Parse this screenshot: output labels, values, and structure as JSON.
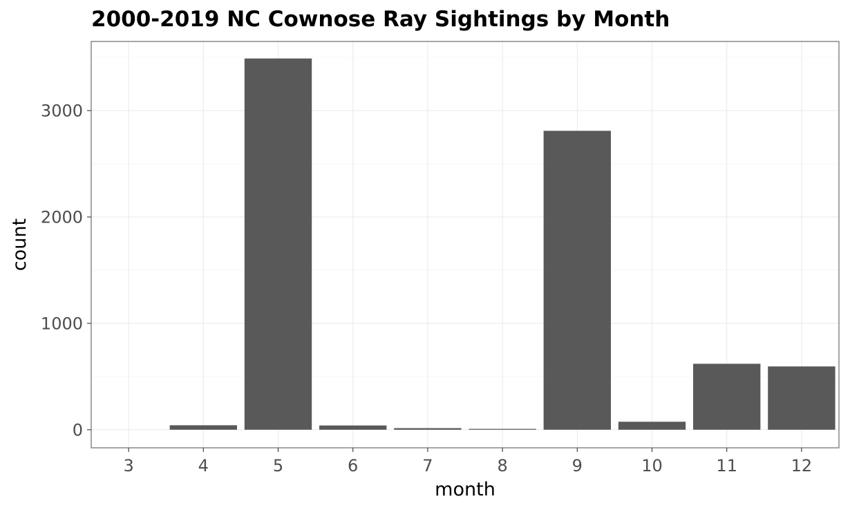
{
  "chart_data": {
    "type": "bar",
    "title": "2000-2019 NC Cownose Ray Sightings by Month",
    "xlabel": "month",
    "ylabel": "count",
    "categories": [
      "3",
      "4",
      "5",
      "6",
      "7",
      "8",
      "9",
      "10",
      "11",
      "12"
    ],
    "values": [
      0,
      42,
      3490,
      40,
      15,
      8,
      2810,
      75,
      620,
      595
    ],
    "ylim": [
      -170,
      3650
    ],
    "y_ticks": [
      0,
      1000,
      2000,
      3000
    ],
    "y_tick_labels": [
      "0",
      "1000",
      "2000",
      "3000"
    ],
    "bar_color": "#595959",
    "grid": true,
    "theme": "light"
  }
}
